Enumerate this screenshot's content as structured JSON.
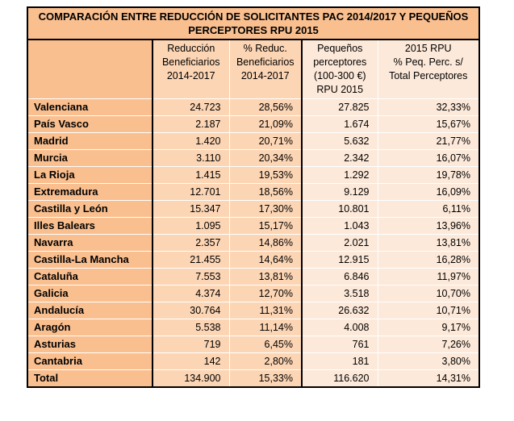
{
  "chart_data": {
    "type": "table",
    "title": "COMPARACIÓN ENTRE REDUCCIÓN DE SOLICITANTES PAC 2014/2017  Y PEQUEÑOS\nPERCEPTORES RPU 2015",
    "column_headers": [
      "",
      "Reducción\nBeneficiarios\n2014-2017",
      "% Reduc.\nBeneficiarios\n2014-2017",
      "Pequeños\nperceptores\n(100-300 €)\nRPU 2015",
      "2015 RPU\n% Peq. Perc. s/\nTotal Perceptores"
    ],
    "rows": [
      {
        "region": "Valenciana",
        "values": [
          "24.723",
          "28,56%",
          "27.825",
          "32,33%"
        ]
      },
      {
        "region": "País Vasco",
        "values": [
          "2.187",
          "21,09%",
          "1.674",
          "15,67%"
        ]
      },
      {
        "region": "Madrid",
        "values": [
          "1.420",
          "20,71%",
          "5.632",
          "21,77%"
        ]
      },
      {
        "region": "Murcia",
        "values": [
          "3.110",
          "20,34%",
          "2.342",
          "16,07%"
        ]
      },
      {
        "region": "La Rioja",
        "values": [
          "1.415",
          "19,53%",
          "1.292",
          "19,78%"
        ]
      },
      {
        "region": "Extremadura",
        "values": [
          "12.701",
          "18,56%",
          "9.129",
          "16,09%"
        ]
      },
      {
        "region": "Castilla y León",
        "values": [
          "15.347",
          "17,30%",
          "10.801",
          "6,11%"
        ]
      },
      {
        "region": "Illes Balears",
        "values": [
          "1.095",
          "15,17%",
          "1.043",
          "13,96%"
        ]
      },
      {
        "region": "Navarra",
        "values": [
          "2.357",
          "14,86%",
          "2.021",
          "13,81%"
        ]
      },
      {
        "region": "Castilla-La Mancha",
        "values": [
          "21.455",
          "14,64%",
          "12.915",
          "16,28%"
        ]
      },
      {
        "region": "Cataluña",
        "values": [
          "7.553",
          "13,81%",
          "6.846",
          "11,97%"
        ]
      },
      {
        "region": "Galicia",
        "values": [
          "4.374",
          "12,70%",
          "3.518",
          "10,70%"
        ]
      },
      {
        "region": "Andalucía",
        "values": [
          "30.764",
          "11,31%",
          "26.632",
          "10,71%"
        ]
      },
      {
        "region": "Aragón",
        "values": [
          "5.538",
          "11,14%",
          "4.008",
          "9,17%"
        ]
      },
      {
        "region": "Asturias",
        "values": [
          "719",
          "6,45%",
          "761",
          "7,26%"
        ]
      },
      {
        "region": "Cantabria",
        "values": [
          "142",
          "2,80%",
          "181",
          "3,80%"
        ]
      },
      {
        "region": "Total",
        "values": [
          "134.900",
          "15,33%",
          "116.620",
          "14,31%"
        ]
      }
    ],
    "colors": {
      "title_and_region_bg": "#FABF8F",
      "reduction_cols_bg": "#FCD5B4",
      "rpu_cols_bg": "#FDE9D9",
      "border": "#000000",
      "row_divider": "#FFFFFF",
      "text": "#000000"
    }
  }
}
